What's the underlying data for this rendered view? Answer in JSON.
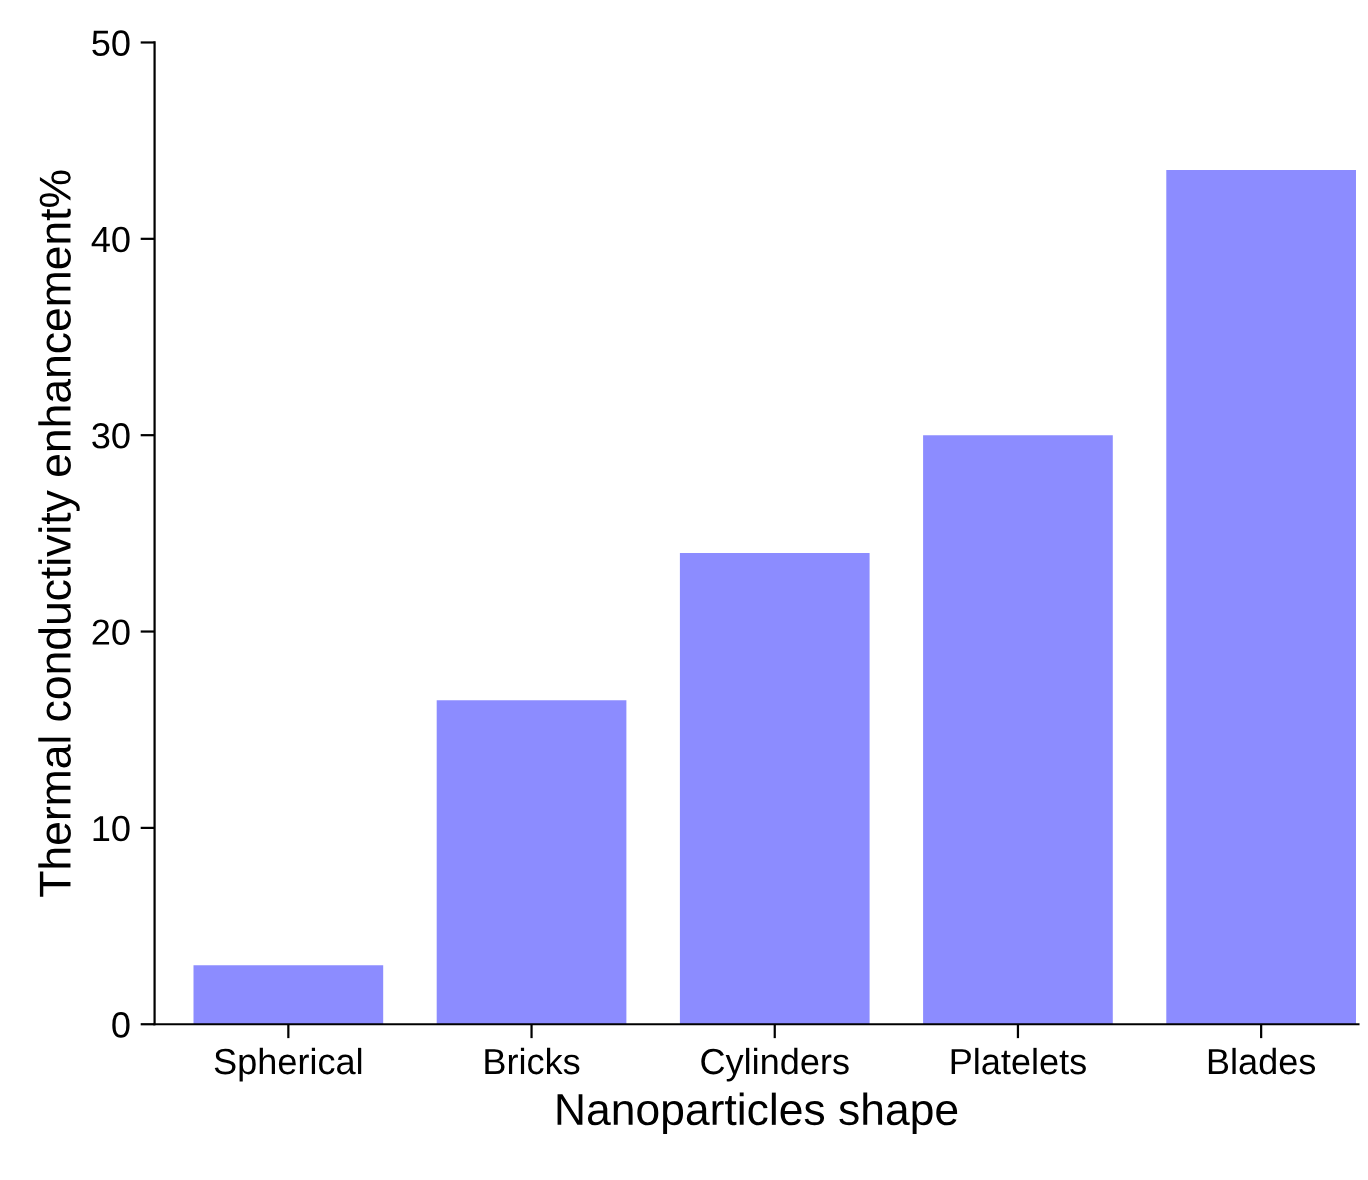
{
  "chart_data": {
    "type": "bar",
    "xlabel": "Nanoparticles shape",
    "ylabel": "Thermal conductivity enhancement%",
    "categories": [
      "Spherical",
      "Bricks",
      "Cylinders",
      "Platelets",
      "Blades"
    ],
    "values": [
      3,
      16.5,
      24,
      30,
      43.5
    ],
    "color": "#8c8cff",
    "ylim": [
      0,
      50
    ],
    "yticks": [
      0,
      10,
      20,
      30,
      40,
      50
    ],
    "grid": false
  }
}
